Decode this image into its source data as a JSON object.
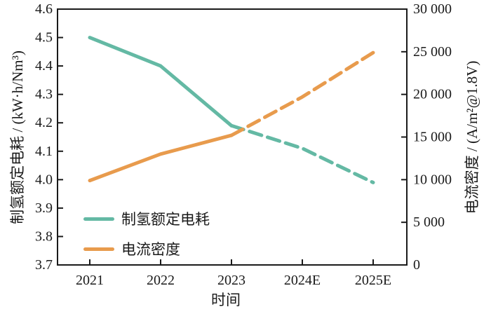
{
  "chart_data": {
    "type": "line",
    "title": "",
    "categories": [
      "2021",
      "2022",
      "2023",
      "2024E",
      "2025E"
    ],
    "series": [
      {
        "name": "制氢额定电耗",
        "axis": "left",
        "color": "#64b9a4",
        "style": "solid-then-dashed",
        "dashed_from_category": "2023",
        "values": [
          4.5,
          4.4,
          4.19,
          4.11,
          3.99
        ]
      },
      {
        "name": "电流密度",
        "axis": "right",
        "color": "#e89b4d",
        "style": "solid-then-dashed",
        "dashed_from_category": "2023",
        "values": [
          9900,
          13000,
          15200,
          19700,
          24900
        ]
      }
    ],
    "xlabel": "时间",
    "ylabel_left": "制氢额定电耗 / (kW·h/Nm³)",
    "ylabel_right": "电流密度 / (A/m²@1.8V)",
    "ylim_left": [
      3.7,
      4.6
    ],
    "ylim_right": [
      0,
      30000
    ],
    "yticks_left": [
      "4.6",
      "4.5",
      "4.4",
      "4.3",
      "4.2",
      "4.1",
      "4.0",
      "3.9",
      "3.8",
      "3.7"
    ],
    "yticks_right": [
      "30 000",
      "25 000",
      "20 000",
      "15 000",
      "10 000",
      "5 000",
      "0"
    ],
    "grid": false,
    "legend_position": "lower-left-inside",
    "axis_color": "#1a1a1a"
  }
}
